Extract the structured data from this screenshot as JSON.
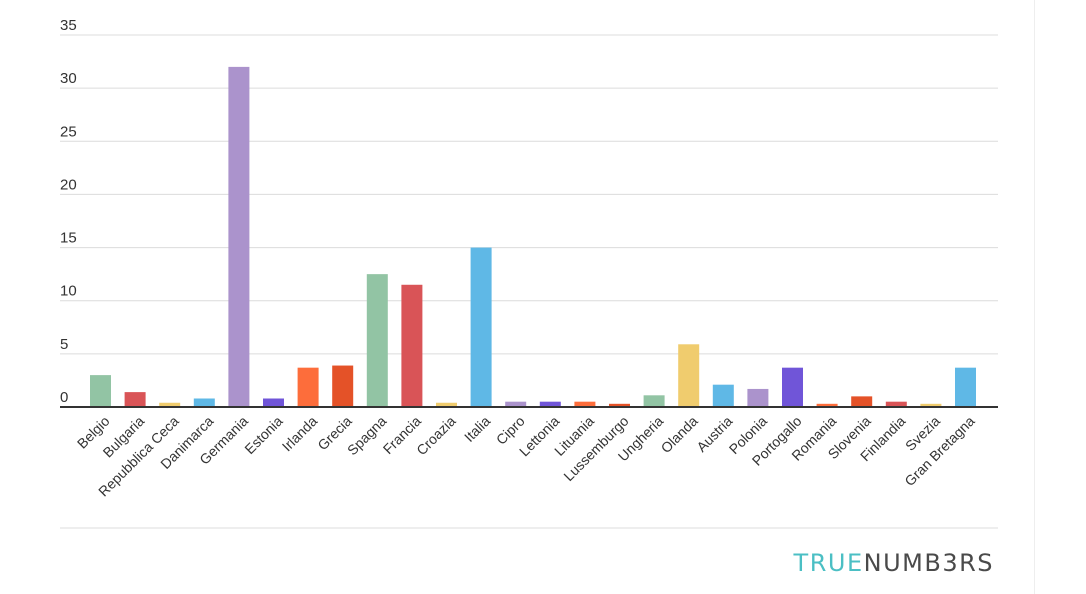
{
  "chart_data": {
    "type": "bar",
    "categories": [
      "Belgio",
      "Bulgaria",
      "Repubblica Ceca",
      "Danimarca",
      "Germania",
      "Estonia",
      "Irlanda",
      "Grecia",
      "Spagna",
      "Francia",
      "Croazia",
      "Italia",
      "Cipro",
      "Lettonia",
      "Lituania",
      "Lussemburgo",
      "Ungheria",
      "Olanda",
      "Austria",
      "Polonia",
      "Portogallo",
      "Romania",
      "Slovenia",
      "Finlandia",
      "Svezia",
      "Gran Bretagna"
    ],
    "values": [
      3.0,
      1.4,
      0.4,
      0.8,
      32.0,
      0.8,
      3.7,
      3.9,
      12.5,
      11.5,
      0.4,
      15.0,
      0.5,
      0.5,
      0.5,
      0.3,
      1.1,
      5.9,
      2.1,
      1.7,
      3.7,
      0.3,
      1.0,
      0.5,
      0.3,
      3.7
    ],
    "colors": [
      "#92c4a4",
      "#d95457",
      "#f0cc6e",
      "#5fb8e6",
      "#ab93cc",
      "#7055d8",
      "#fd6d3b",
      "#e45228",
      "#92c4a4",
      "#d95457",
      "#f0cc6e",
      "#5fb8e6",
      "#ab93cc",
      "#7055d8",
      "#fd6d3b",
      "#e45228",
      "#92c4a4",
      "#f0cc6e",
      "#5fb8e6",
      "#ab93cc",
      "#7055d8",
      "#fd6d3b",
      "#e45228",
      "#d95457",
      "#f0cc6e",
      "#5fb8e6"
    ],
    "yticks": [
      "0",
      "5",
      "10",
      "15",
      "20",
      "25",
      "30",
      "35"
    ],
    "ylim": [
      0,
      35
    ],
    "grid": true,
    "title": "",
    "xlabel": "",
    "ylabel": ""
  },
  "brand": {
    "part1": "TRUE",
    "part2": "NUMB3RS"
  }
}
